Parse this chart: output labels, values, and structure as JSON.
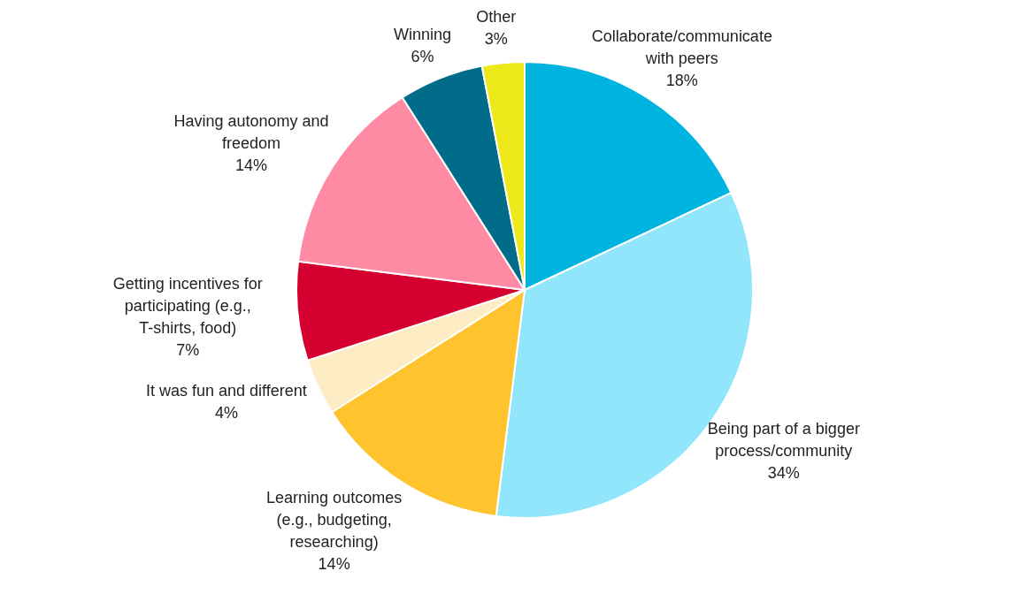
{
  "chart_data": {
    "type": "pie",
    "categories": [
      "Collaborate/communicate with peers",
      "Being part of a bigger process/community",
      "Learning outcomes (e.g., budgeting, researching)",
      "It was fun and different",
      "Getting incentives for participating (e.g., T-shirts, food)",
      "Having autonomy and freedom",
      "Winning",
      "Other"
    ],
    "values": [
      18,
      34,
      14,
      4,
      7,
      14,
      6,
      3
    ],
    "colors": [
      "#00b4e0",
      "#92e6fc",
      "#fec32d",
      "#fdecc4",
      "#d5002f",
      "#ff8aa4",
      "#006c8a",
      "#ece81a"
    ],
    "value_labels": [
      "18%",
      "34%",
      "14%",
      "4%",
      "7%",
      "14%",
      "6%",
      "3%"
    ]
  }
}
